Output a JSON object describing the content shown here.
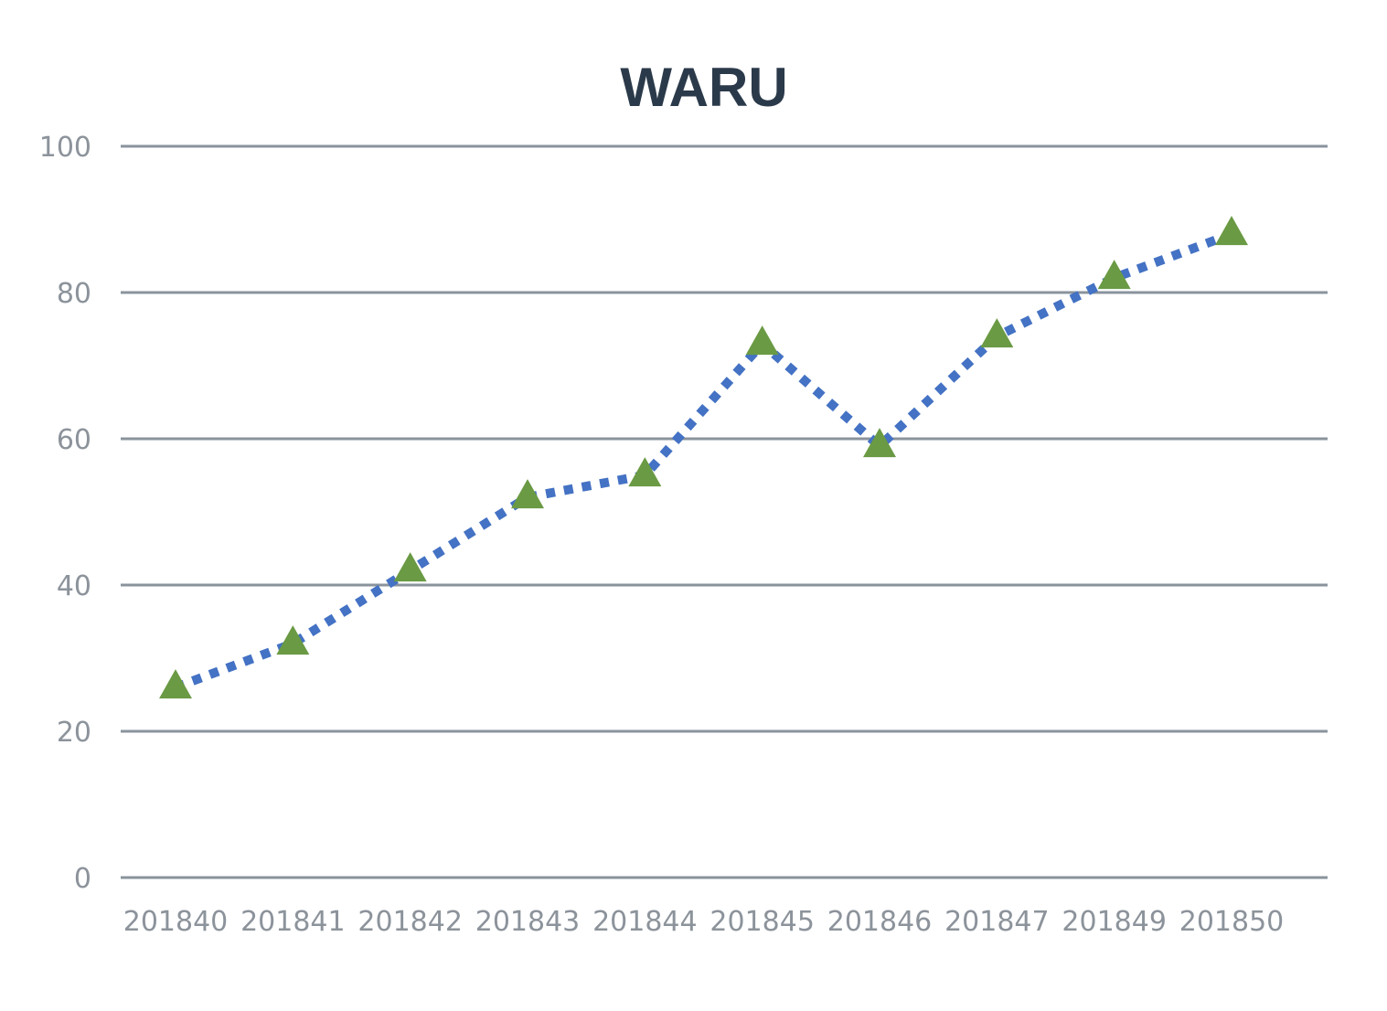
{
  "chart_data": {
    "type": "line",
    "title": "WARU",
    "xlabel": "",
    "ylabel": "",
    "categories": [
      "201840",
      "201841",
      "201842",
      "201843",
      "201844",
      "201845",
      "201846",
      "201847",
      "201849",
      "201850"
    ],
    "series": [
      {
        "values": [
          26,
          32,
          42,
          52,
          55,
          73,
          59,
          74,
          82,
          88
        ],
        "line_color": "#4472c4",
        "line_style": "dotted",
        "marker": "triangle",
        "marker_color": "#6a9a44"
      }
    ],
    "ylim": [
      0,
      100
    ],
    "yticks": [
      0,
      20,
      40,
      60,
      80,
      100
    ],
    "grid": true,
    "legend": "none"
  }
}
